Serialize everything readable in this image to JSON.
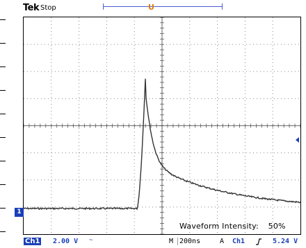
{
  "header": {
    "brand": "Tek",
    "status": "Stop",
    "trigger_position_label": "U"
  },
  "screen": {
    "channel_marker": "1",
    "waveform_intensity_label": "Waveform Intensity:",
    "waveform_intensity_value": "50%"
  },
  "footer": {
    "channel": "Ch1",
    "volts_per_div": "2.00 V",
    "bandwidth_icon": "~",
    "timebase_label": "M",
    "timebase": "200ns",
    "trigger_label": "A",
    "trigger_source": "Ch1",
    "trigger_slope_icon": "rising-edge",
    "trigger_level": "5.24 V"
  },
  "colors": {
    "channel": "#1a3fb8",
    "trigger": "#e07a10",
    "trace": "#333333",
    "grid": "#888888"
  }
}
